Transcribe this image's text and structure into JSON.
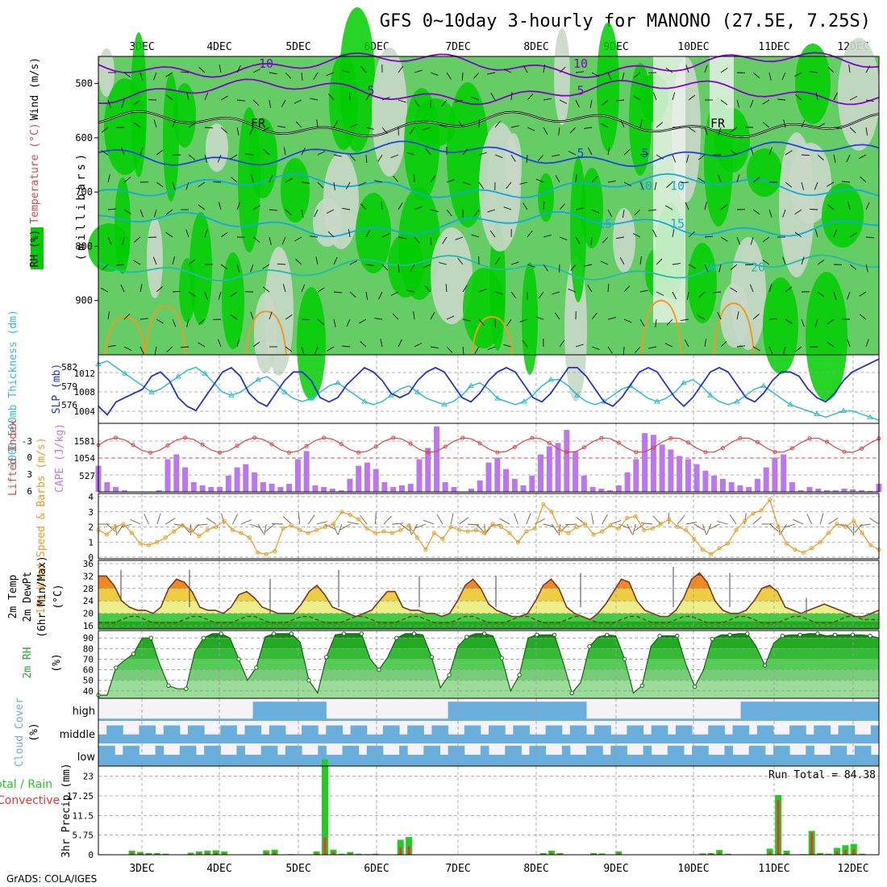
{
  "title": "GFS 0~10day 3-hourly for MANONO (27.5E, 7.25S)",
  "credit": "GrADS: COLA/IGES",
  "run_total_label": "Run Total = 84.38",
  "colors": {
    "rh_dark": "#00cc00",
    "rh_mid": "#66cc66",
    "rh_light": "#c8d8c8",
    "temp_purple": "#8800cc",
    "temp_blue": "#2244dd",
    "temp_cyan": "#11aadd",
    "temp_teal": "#22bbaa",
    "temp_orange": "#ee9922",
    "slp": "#2233cc",
    "thickness": "#33bbcc",
    "lifted_index": "#dd4444",
    "cape": "#bb77ee",
    "wind10m": "#ee9922",
    "cloud": "#6aaedc",
    "precip_total": "#22cc22",
    "precip_conv": "#ee3333"
  },
  "chart_data": [
    {
      "type": "heatmap",
      "panel": "upper-air",
      "ylabel_parts": [
        "RH (%)",
        "Temperature (°C)",
        "Wind (m/s)"
      ],
      "ylabel_right": "(millibars)",
      "x": [
        "3DEC",
        "4DEC",
        "5DEC",
        "6DEC",
        "7DEC",
        "8DEC",
        "9DEC",
        "10DEC",
        "11DEC",
        "12DEC"
      ],
      "ylim": [
        1000,
        450
      ],
      "yticks": [
        500,
        600,
        700,
        800,
        900
      ],
      "contour_labels": [
        "10",
        "5",
        "5",
        "FR",
        "FR",
        "FR",
        "5",
        "5",
        "10",
        "10",
        "15",
        "15",
        "20",
        "20"
      ],
      "contours": [
        {
          "label": "10",
          "level": 465
        },
        {
          "label": "5",
          "level": 515
        },
        {
          "label": "FR",
          "level": 575
        },
        {
          "label": "5",
          "level": 630
        },
        {
          "label": "10",
          "level": 690
        },
        {
          "label": "15",
          "level": 760
        },
        {
          "label": "20",
          "level": 840
        }
      ]
    },
    {
      "type": "line",
      "panel": "slp-thickness",
      "ylabel_left": "1000-500mb Thickness (dm)",
      "ylabel_right": "SLP (mb)",
      "yticks_left": [
        "582",
        "579",
        "576"
      ],
      "yticks_right": [
        "1012",
        "1008",
        "1004"
      ],
      "series": [
        {
          "name": "SLP",
          "values": [
            1004,
            1002,
            1005,
            1006,
            1007,
            1008,
            1011,
            1012,
            1010,
            1006,
            1004,
            1003,
            1006,
            1009,
            1012,
            1013,
            1011,
            1007,
            1005,
            1004,
            1007,
            1010,
            1012,
            1012,
            1010,
            1006,
            1005,
            1006,
            1009,
            1011,
            1013,
            1012,
            1010,
            1007,
            1006,
            1007,
            1010,
            1012,
            1013,
            1012,
            1009,
            1006,
            1005,
            1007,
            1010,
            1012,
            1013,
            1012,
            1009,
            1006,
            1005,
            1007,
            1010,
            1013,
            1013,
            1011,
            1008,
            1005,
            1004,
            1006,
            1009,
            1012,
            1013,
            1012,
            1009,
            1006,
            1004,
            1006,
            1009,
            1012,
            1013,
            1012,
            1009,
            1006,
            1005,
            1007,
            1010,
            1012,
            1012,
            1011,
            1008,
            1006,
            1005,
            1007,
            1010,
            1012,
            1013,
            1014,
            1015
          ]
        },
        {
          "name": "Thickness",
          "values": [
            582.5,
            583.0,
            582.0,
            581.0,
            580.0,
            579.0,
            578.0,
            578.5,
            579.5,
            580.5,
            581.5,
            582.0,
            581.0,
            579.5,
            578.0,
            577.5,
            578.0,
            579.0,
            580.0,
            580.5,
            579.5,
            578.0,
            577.0,
            576.5,
            577.0,
            578.0,
            579.0,
            579.5,
            578.5,
            577.5,
            576.5,
            576.0,
            576.5,
            577.5,
            578.5,
            579.0,
            578.0,
            577.0,
            576.5,
            576.0,
            576.5,
            577.5,
            579.0,
            579.5,
            578.5,
            577.0,
            576.5,
            576.0,
            576.5,
            577.5,
            579.0,
            580.0,
            580.0,
            579.0,
            577.5,
            576.5,
            576.0,
            576.5,
            577.5,
            578.5,
            579.0,
            578.0,
            577.0,
            576.5,
            577.0,
            578.0,
            579.5,
            580.0,
            579.0,
            577.5,
            576.5,
            576.0,
            576.5,
            577.5,
            578.5,
            579.0,
            578.0,
            577.0,
            576.0,
            575.5,
            575.0,
            574.5,
            574.0,
            574.5,
            575.0,
            575.0,
            574.5,
            574.0,
            573.5
          ]
        }
      ]
    },
    {
      "type": "bar",
      "panel": "lifted-cape",
      "ylabel_left": "Lifted Index",
      "ylabel_right": "CAPE (J/kg)",
      "yticks_left": [
        "-3",
        "0",
        "3",
        "6"
      ],
      "yticks_right": [
        "1581",
        "1054",
        "527"
      ],
      "cape_values": [
        800,
        300,
        150,
        50,
        0,
        0,
        0,
        50,
        1000,
        1150,
        750,
        300,
        200,
        150,
        150,
        500,
        750,
        850,
        600,
        300,
        250,
        150,
        250,
        1000,
        1250,
        200,
        150,
        100,
        50,
        400,
        800,
        900,
        700,
        300,
        150,
        200,
        250,
        1000,
        1350,
        2000,
        300,
        150,
        0,
        100,
        350,
        900,
        1050,
        700,
        400,
        200,
        500,
        1150,
        1400,
        1500,
        1900,
        1250,
        500,
        150,
        100,
        50,
        200,
        600,
        1000,
        1800,
        1750,
        1450,
        1300,
        1100,
        1000,
        850,
        650,
        500,
        400,
        300,
        200,
        150,
        400,
        750,
        1050,
        1150,
        300,
        50,
        150,
        100,
        50,
        50,
        100,
        80,
        50,
        30,
        250
      ]
    },
    {
      "type": "line",
      "panel": "wind10m",
      "ylabel": "10m Wind Speed & Barbs (m/s)",
      "ylim": [
        0,
        4
      ],
      "yticks": [
        "0",
        "1",
        "2",
        "3",
        "4"
      ],
      "values": [
        1.8,
        1.5,
        2.0,
        2.2,
        1.6,
        0.9,
        0.8,
        1.0,
        1.3,
        1.7,
        2.1,
        1.8,
        1.4,
        1.8,
        2.0,
        2.4,
        1.8,
        1.6,
        1.3,
        0.3,
        0.2,
        0.4,
        1.9,
        2.1,
        1.8,
        1.6,
        1.8,
        2.0,
        2.2,
        3.0,
        2.8,
        2.5,
        1.9,
        1.6,
        1.7,
        1.6,
        1.8,
        2.1,
        1.3,
        0.5,
        1.6,
        1.2,
        2.0,
        1.8,
        1.7,
        1.8,
        1.6,
        2.2,
        2.0,
        1.6,
        1.0,
        1.7,
        1.9,
        3.5,
        3.0,
        1.8,
        1.6,
        2.0,
        2.2,
        1.5,
        1.7,
        2.1,
        1.9,
        2.6,
        2.7,
        1.8,
        1.9,
        2.2,
        2.5,
        2.0,
        1.8,
        1.2,
        0.5,
        0.2,
        0.6,
        0.9,
        1.8,
        2.4,
        2.9,
        3.1,
        3.8,
        2.0,
        0.9,
        0.5,
        0.3,
        0.6,
        1.0,
        1.6,
        2.2,
        2.0,
        2.4,
        1.6,
        0.8,
        0.5
      ]
    },
    {
      "type": "area",
      "panel": "temp2m",
      "ylabel": "2m Temp 2m DewPt (6hr Min/Max) (°C)",
      "ylim": [
        15,
        37
      ],
      "yticks": [
        "16",
        "20",
        "24",
        "28",
        "32",
        "36"
      ],
      "temp": [
        32,
        32,
        29,
        24,
        22,
        21,
        21,
        20,
        22,
        28,
        31,
        30,
        27,
        22,
        21,
        21,
        20,
        22,
        26,
        27,
        25,
        22,
        21,
        20,
        20,
        20,
        23,
        27,
        29,
        26,
        22,
        21,
        20,
        19,
        20,
        21,
        24,
        27,
        27,
        22,
        21,
        21,
        20,
        20,
        19,
        20,
        24,
        29,
        31,
        28,
        23,
        21,
        20,
        19,
        19,
        20,
        24,
        29,
        31,
        28,
        22,
        20,
        19,
        18,
        20,
        23,
        27,
        31,
        30,
        24,
        21,
        20,
        19,
        19,
        21,
        25,
        31,
        33,
        30,
        24,
        21,
        20,
        20,
        21,
        24,
        28,
        29,
        27,
        22,
        21,
        20,
        21,
        22,
        23,
        22,
        21,
        20,
        19,
        19,
        20,
        21
      ],
      "dewpt": [
        17,
        17,
        17,
        18,
        19,
        19,
        18,
        17,
        17,
        17,
        17,
        18,
        19,
        19,
        18,
        17,
        17,
        17,
        18,
        19,
        19,
        18,
        17,
        17,
        17,
        18,
        19,
        19,
        18,
        17,
        17,
        17,
        18,
        19,
        19,
        18,
        17,
        17,
        17,
        18,
        19,
        19,
        18,
        17,
        17,
        17,
        18,
        19,
        19,
        18,
        17,
        17,
        17,
        18,
        19,
        19,
        18,
        17,
        17,
        17,
        18,
        19,
        19,
        18,
        17,
        17,
        17,
        18,
        19,
        19,
        18,
        17,
        17,
        17,
        18,
        19,
        19,
        18,
        17,
        17,
        17,
        18,
        19,
        19,
        18,
        17,
        17,
        17,
        18,
        19,
        19,
        18,
        17,
        17,
        17,
        18,
        19,
        19,
        18,
        18,
        18
      ]
    },
    {
      "type": "area",
      "panel": "rh2m",
      "ylabel": "2m RH (%)",
      "ylim": [
        33,
        97
      ],
      "yticks": [
        "40",
        "50",
        "60",
        "70",
        "80",
        "90"
      ],
      "values": [
        36,
        36,
        62,
        69,
        75,
        90,
        90,
        65,
        45,
        42,
        42,
        77,
        90,
        94,
        94,
        90,
        70,
        50,
        62,
        91,
        94,
        94,
        94,
        86,
        50,
        38,
        72,
        93,
        94,
        94,
        94,
        70,
        60,
        72,
        90,
        94,
        94,
        93,
        72,
        43,
        55,
        82,
        91,
        94,
        94,
        92,
        71,
        40,
        55,
        90,
        93,
        93,
        93,
        67,
        38,
        48,
        82,
        91,
        93,
        92,
        70,
        38,
        45,
        82,
        92,
        92,
        92,
        65,
        44,
        60,
        89,
        93,
        93,
        94,
        94,
        82,
        64,
        85,
        92,
        93,
        93,
        94,
        94,
        92,
        93,
        93,
        93,
        93,
        92,
        90
      ]
    },
    {
      "type": "heatmap",
      "panel": "cloud",
      "ylabel": "Cloud Cover (%)",
      "categories": [
        "high",
        "middle",
        "low"
      ]
    },
    {
      "type": "bar",
      "panel": "precip",
      "ylabel_left": "Total / Rain Convective",
      "ylabel_right": "3hr Precip (mm)",
      "ylim": [
        0,
        26
      ],
      "yticks": [
        "0",
        "5.75",
        "11.5",
        "17.25",
        "23"
      ],
      "x": [
        "3DEC",
        "4DEC",
        "5DEC",
        "6DEC",
        "7DEC",
        "8DEC",
        "9DEC",
        "10DEC",
        "11DEC",
        "12DEC"
      ],
      "total": [
        0,
        0,
        0,
        0,
        1.2,
        0.8,
        0.5,
        0.5,
        0.3,
        0,
        0,
        0.6,
        1.0,
        1.2,
        1.3,
        1.0,
        0,
        0,
        0,
        0,
        1.3,
        1.5,
        0,
        0.2,
        0,
        0,
        1.0,
        28,
        1.5,
        0.3,
        0.8,
        0.3,
        0.2,
        0.3,
        0,
        0,
        4.4,
        5.2,
        0,
        0,
        0,
        0,
        0,
        0,
        0,
        0,
        0,
        0,
        0,
        0,
        0,
        0,
        0,
        0.5,
        1.2,
        0.5,
        0,
        0,
        0,
        0.5,
        0.4,
        0,
        1.0,
        0,
        0,
        0,
        0,
        0,
        0,
        0,
        0,
        0,
        0.4,
        0.5,
        1.4,
        0.3,
        0,
        0,
        0,
        0,
        1.8,
        17.5,
        1.2,
        0,
        0.2,
        7.0,
        0.5,
        0.3,
        2.0,
        2.8,
        3.2,
        0.3,
        0,
        0
      ],
      "convective": [
        0,
        0,
        0,
        0,
        0.6,
        0.4,
        0.3,
        0.3,
        0.2,
        0,
        0,
        0.3,
        0.5,
        0.6,
        0.7,
        0.5,
        0,
        0,
        0,
        0,
        0.7,
        0.8,
        0,
        0.1,
        0,
        0,
        0.5,
        5.0,
        0.8,
        0.2,
        0.4,
        0.2,
        0.1,
        0.2,
        0,
        0,
        2.2,
        2.6,
        0,
        0,
        0,
        0,
        0,
        0,
        0,
        0,
        0,
        0,
        0,
        0,
        0,
        0,
        0,
        0.3,
        0.6,
        0.3,
        0,
        0,
        0,
        0.3,
        0.2,
        0,
        0.5,
        0,
        0,
        0,
        0,
        0,
        0,
        0,
        0,
        0,
        0.2,
        0.3,
        0.7,
        0.2,
        0,
        0,
        0,
        0,
        0.9,
        16.0,
        0.6,
        0,
        0.1,
        6.5,
        0.3,
        0.2,
        1.0,
        1.4,
        1.6,
        0.2,
        0,
        0
      ]
    }
  ]
}
